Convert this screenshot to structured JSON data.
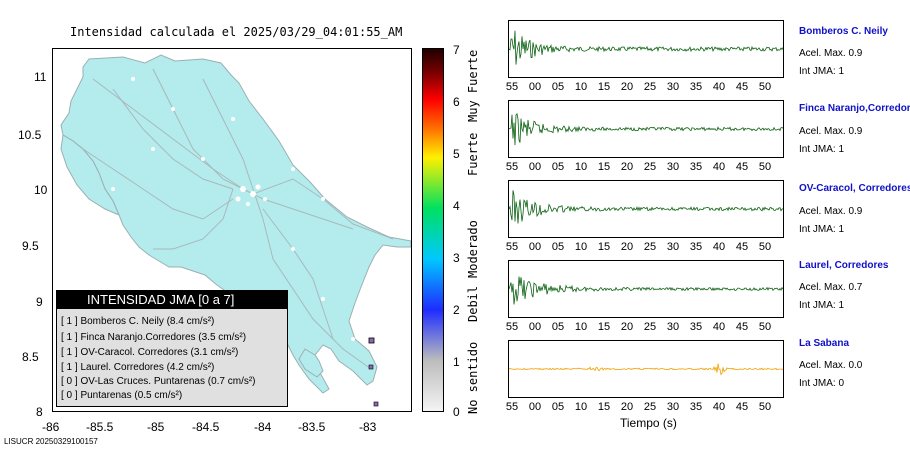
{
  "map": {
    "title": "Intensidad calculada el 2025/03/29_04:01:55_AM",
    "lat_ticks": [
      "11",
      "10.5",
      "10",
      "9.5",
      "9",
      "8.5",
      "8"
    ],
    "lon_ticks": [
      "-86",
      "-85.5",
      "-85",
      "-84.5",
      "-84",
      "-83.5",
      "-83"
    ],
    "land_color": "#b4ecee",
    "footer_id": "LISUCR 20250329100157"
  },
  "legend": {
    "title": "INTENSIDAD JMA [0 a 7]",
    "rows": [
      "[ 1 ]  Bomberos C. Neily (8.4 cm/s²)",
      "[ 1 ]  Finca Naranjo.Corredores (3.5 cm/s²)",
      "[ 1 ]  OV-Caracol. Corredores (3.1 cm/s²)",
      "[ 1 ]  Laurel. Corredores (4.2 cm/s²)",
      "[ 0 ]  OV-Las Cruces. Puntarenas (0.7 cm/s²)",
      "[ 0 ]  Puntarenas (0.5 cm/s²)"
    ]
  },
  "colorbar": {
    "ticks": [
      "7",
      "6",
      "5",
      "4",
      "3",
      "2",
      "1",
      "0"
    ],
    "categories": [
      "Muy Fuerte",
      "Fuerte",
      "Moderado",
      "Debil",
      "No sentido"
    ]
  },
  "waveforms": {
    "time_ticks": [
      "55",
      "00",
      "05",
      "10",
      "15",
      "20",
      "25",
      "30",
      "35",
      "40",
      "45",
      "50"
    ],
    "xlabel": "Tiempo (s)",
    "stations": [
      {
        "name": "Bomberos C. Neily",
        "acel": "Acel. Max. 0.9",
        "int": "Int JMA: 1",
        "color": "#0a6010",
        "amp": 1.0,
        "decay": 0.06
      },
      {
        "name": "Finca Naranjo,Corredores",
        "acel": "Acel. Max. 0.9",
        "int": "Int JMA: 1",
        "color": "#0a6010",
        "amp": 0.8,
        "decay": 0.05
      },
      {
        "name": "OV-Caracol, Corredores",
        "acel": "Acel. Max. 0.9",
        "int": "Int JMA: 1",
        "color": "#0a6010",
        "amp": 0.85,
        "decay": 0.05
      },
      {
        "name": "Laurel, Corredores",
        "acel": "Acel. Max. 0.7",
        "int": "Int JMA: 1",
        "color": "#0a6010",
        "amp": 0.7,
        "decay": 0.04
      },
      {
        "name": "La Sabana",
        "acel": "Acel. Max. 0.0",
        "int": "Int JMA: 0",
        "color": "#f0a000",
        "amp": 0.25,
        "decay": 0.0
      }
    ]
  }
}
